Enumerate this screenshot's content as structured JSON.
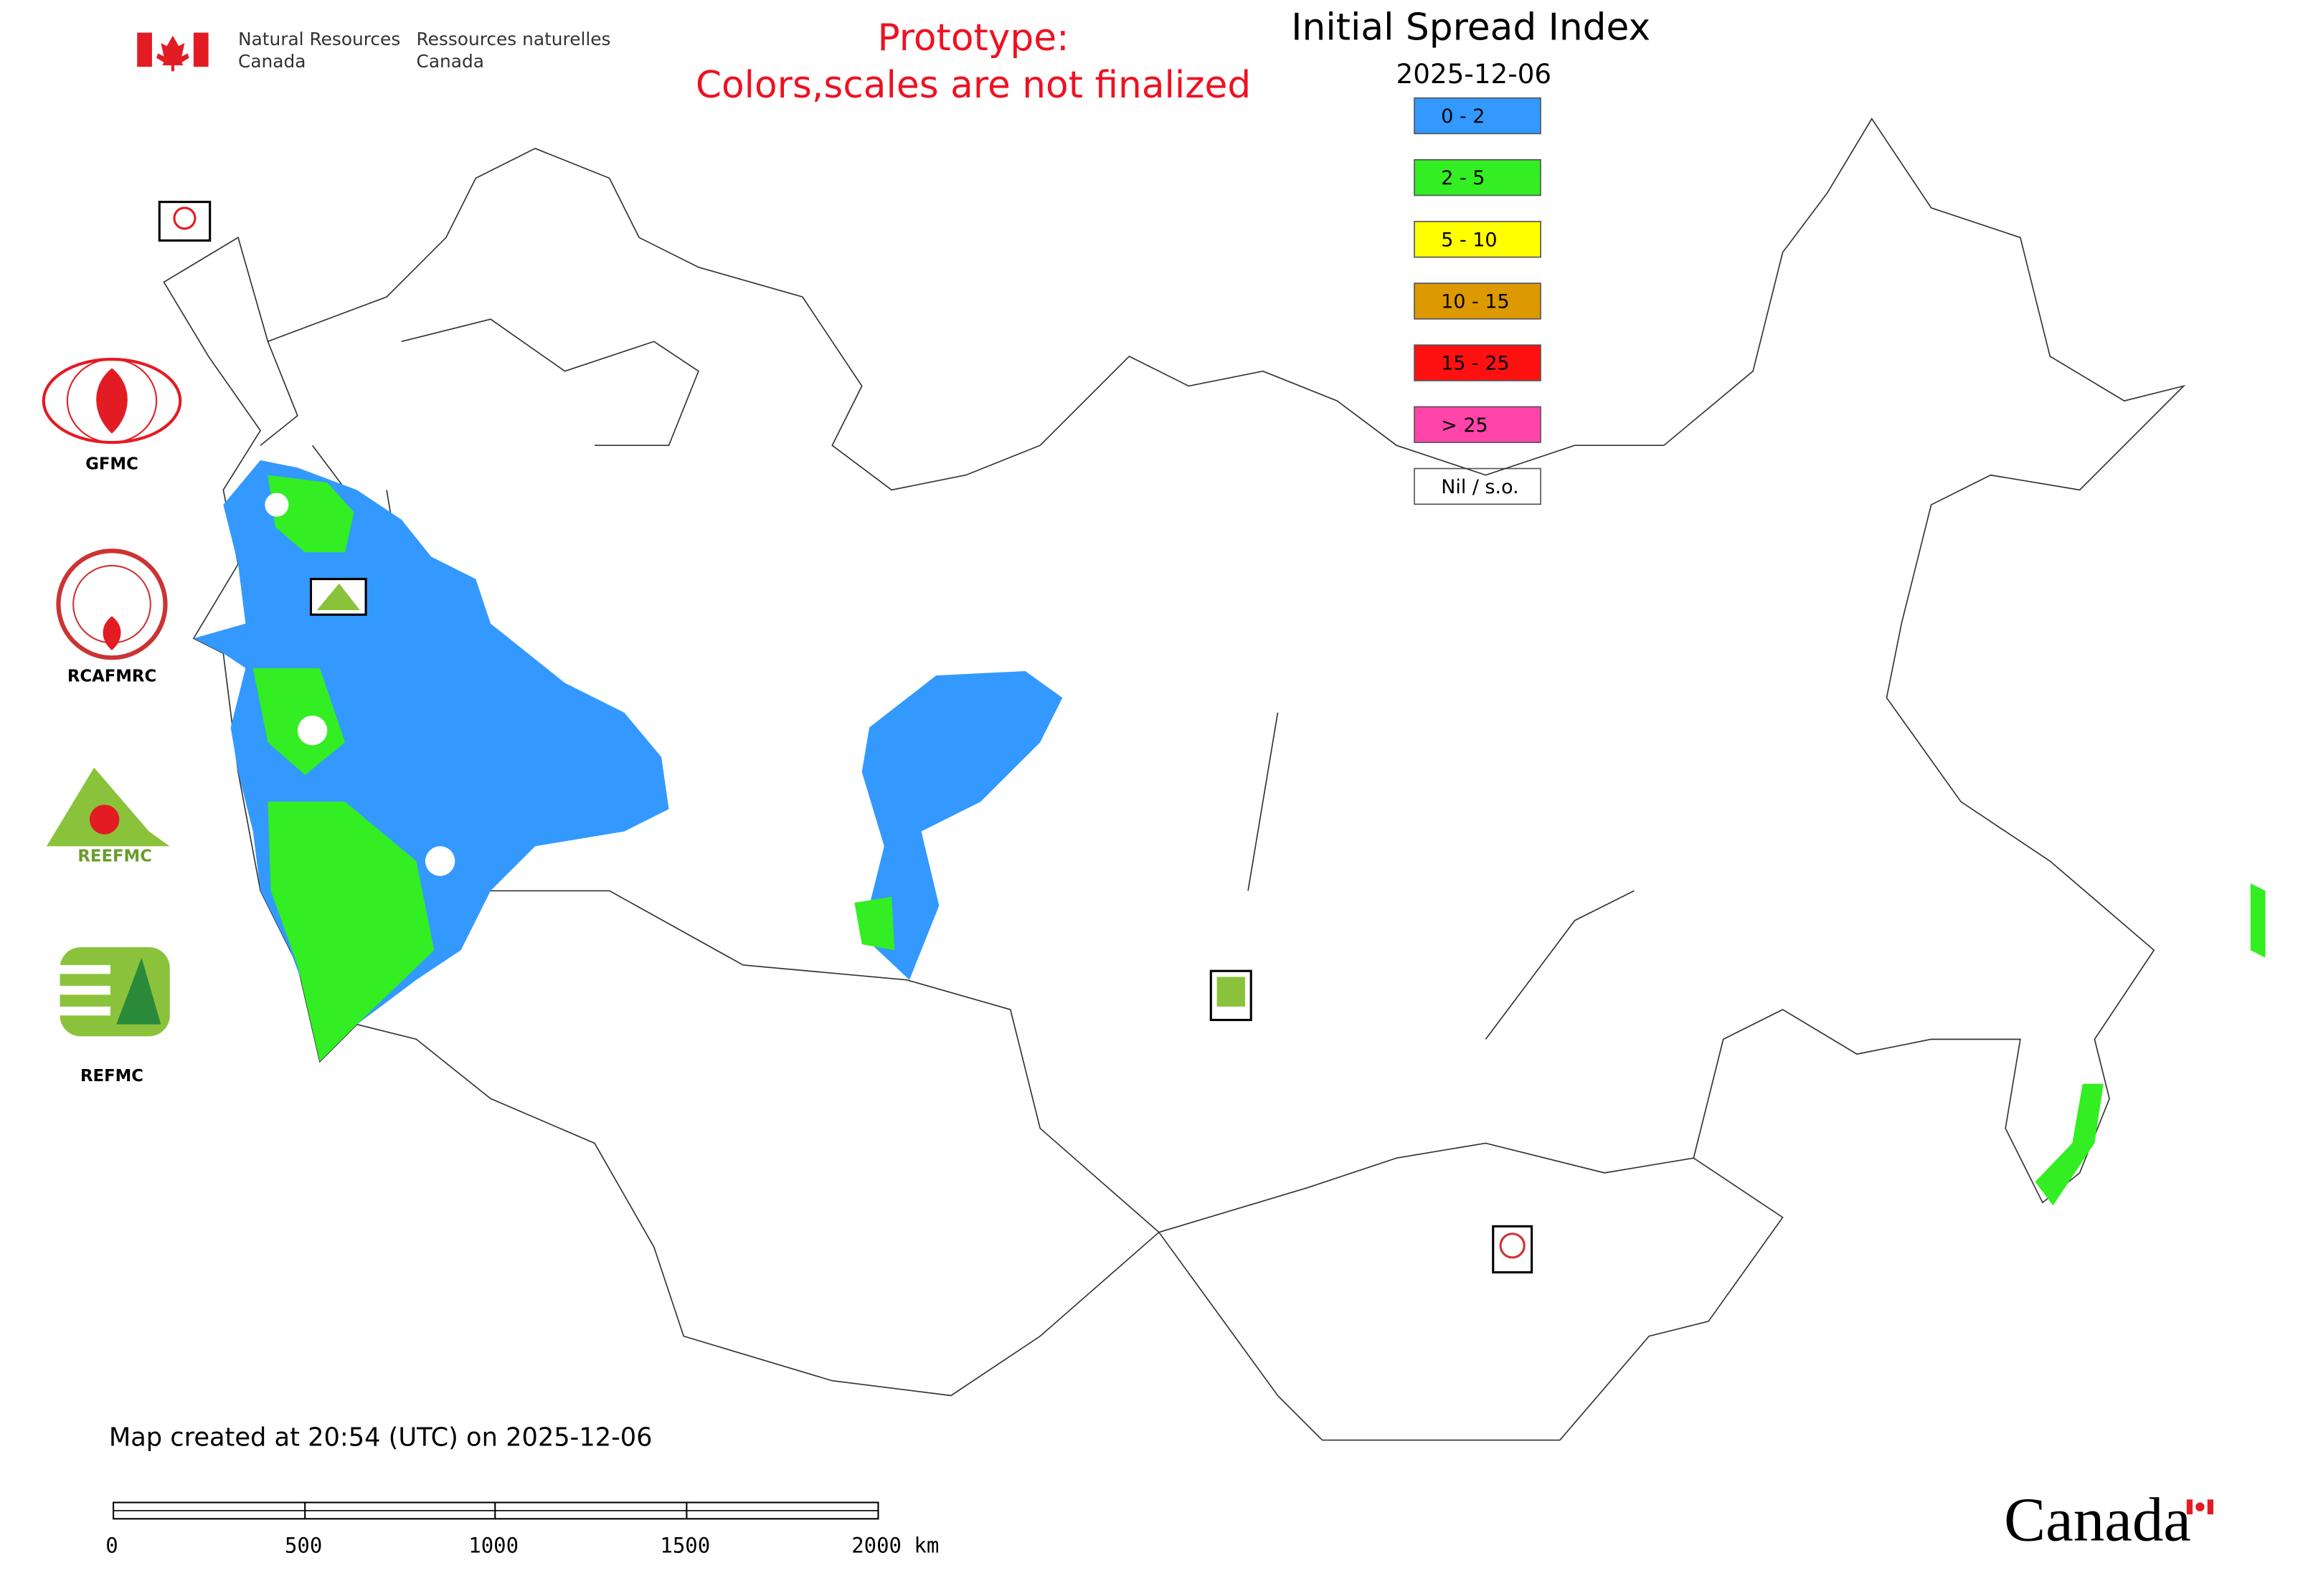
{
  "header": {
    "dept_en_1": "Natural Resources",
    "dept_en_2": "Canada",
    "dept_fr_1": "Ressources naturelles",
    "dept_fr_2": "Canada"
  },
  "notice": {
    "line1": "Prototype:",
    "line2": "Colors,scales are not finalized"
  },
  "map": {
    "title": "Initial Spread Index",
    "date": "2025-12-06"
  },
  "legend": {
    "items": [
      {
        "label": "0 - 2",
        "color": "#3399ff"
      },
      {
        "label": "2 - 5",
        "color": "#33ee22"
      },
      {
        "label": "5 - 10",
        "color": "#ffff00"
      },
      {
        "label": "10 - 15",
        "color": "#dd9900"
      },
      {
        "label": "15 - 25",
        "color": "#ff1111"
      },
      {
        "label": "> 25",
        "color": "#ff44aa"
      },
      {
        "label": "Nil / s.o.",
        "color": "#ffffff"
      }
    ]
  },
  "logos": {
    "gfmc": "GFMC",
    "rcafmrc": "RCAFMRC",
    "refmc": "REFMC"
  },
  "footer": {
    "created": "Map created at 20:54 (UTC) on 2025-12-06",
    "wordmark": "Canada"
  },
  "scale_bar": {
    "labels": [
      "0",
      "500",
      "1000",
      "1500",
      "2000 km"
    ]
  }
}
